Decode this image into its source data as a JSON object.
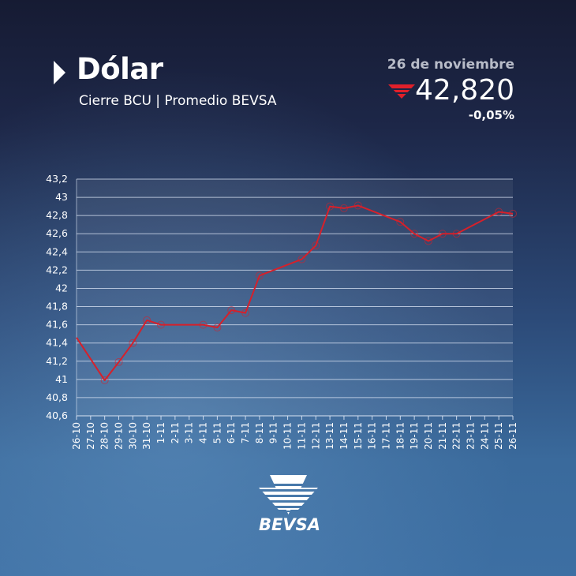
{
  "header": {
    "title": "Dólar",
    "subtitle": "Cierre BCU | Promedio BEVSA",
    "date": "26 de noviembre",
    "price": "42,820",
    "change": "-0,05%",
    "trend_icon": "down-triangle-icon",
    "trend_color": "#e0202a"
  },
  "logo": {
    "text": "BEVSA"
  },
  "chart_data": {
    "type": "line",
    "title": "",
    "xlabel": "",
    "ylabel": "",
    "ylim": [
      40.6,
      43.2
    ],
    "yticks": [
      "40,6",
      "40,8",
      "41",
      "41,2",
      "41,4",
      "41,6",
      "41,8",
      "42",
      "42,2",
      "42,4",
      "42,6",
      "42,8",
      "43",
      "43,2"
    ],
    "grid": true,
    "line_color": "#d6202a",
    "categories": [
      "26-10",
      "27-10",
      "28-10",
      "29-10",
      "30-10",
      "31-10",
      "1-11",
      "2-11",
      "3-11",
      "4-11",
      "5-11",
      "6-11",
      "7-11",
      "8-11",
      "9-11",
      "10-11",
      "11-11",
      "12-11",
      "13-11",
      "14-11",
      "15-11",
      "16-11",
      "17-11",
      "18-11",
      "19-11",
      "20-11",
      "21-11",
      "22-11",
      "23-11",
      "24-11",
      "25-11",
      "26-11"
    ],
    "values": [
      41.46,
      null,
      40.99,
      41.19,
      41.4,
      41.65,
      41.6,
      null,
      null,
      41.6,
      41.57,
      41.76,
      41.73,
      42.14,
      null,
      null,
      42.32,
      42.47,
      42.9,
      42.88,
      42.91,
      null,
      null,
      42.73,
      42.6,
      42.52,
      42.6,
      42.6,
      null,
      null,
      42.84,
      42.82
    ]
  }
}
